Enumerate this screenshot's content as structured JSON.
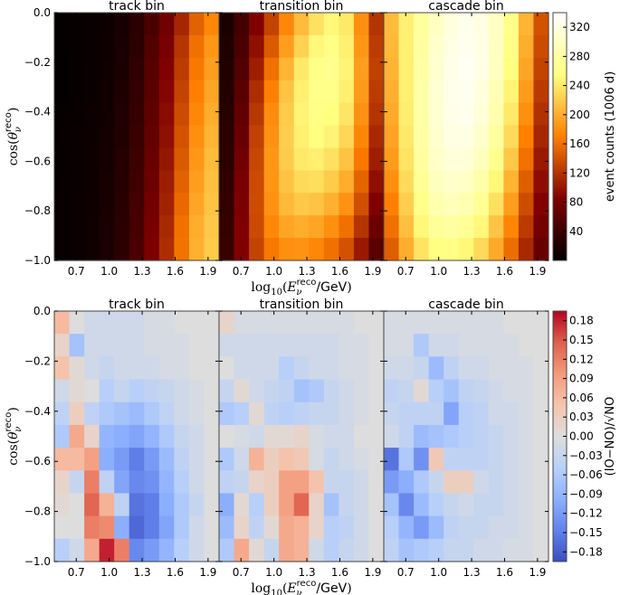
{
  "chart_data": [
    {
      "type": "heatmap",
      "title": "event counts",
      "panels": [
        {
          "title": "track bin",
          "grid": [
            [
              3,
              4,
              6,
              10,
              16,
              28,
              50,
              75,
              110,
              150,
              175
            ],
            [
              3,
              4,
              6,
              10,
              17,
              30,
              55,
              80,
              120,
              160,
              185
            ],
            [
              3,
              5,
              7,
              11,
              18,
              32,
              58,
              85,
              125,
              165,
              190
            ],
            [
              3,
              5,
              7,
              12,
              20,
              34,
              60,
              88,
              130,
              170,
              195
            ],
            [
              4,
              5,
              8,
              12,
              21,
              36,
              63,
              92,
              135,
              175,
              200
            ],
            [
              4,
              6,
              8,
              13,
              22,
              38,
              66,
              95,
              140,
              180,
              205
            ],
            [
              4,
              6,
              9,
              14,
              24,
              40,
              70,
              100,
              145,
              185,
              210
            ],
            [
              4,
              6,
              9,
              15,
              25,
              42,
              72,
              104,
              150,
              190,
              212
            ],
            [
              5,
              7,
              10,
              16,
              27,
              45,
              76,
              108,
              155,
              195,
              215
            ],
            [
              5,
              7,
              11,
              17,
              28,
              47,
              79,
              112,
              160,
              200,
              218
            ],
            [
              5,
              7,
              11,
              18,
              30,
              50,
              82,
              115,
              162,
              202,
              220
            ]
          ]
        },
        {
          "title": "transition bin",
          "grid": [
            [
              18,
              45,
              85,
              130,
              175,
              210,
              235,
              250,
              240,
              180,
              120
            ],
            [
              20,
              50,
              95,
              145,
              190,
              225,
              250,
              260,
              245,
              185,
              125
            ],
            [
              22,
              55,
              105,
              160,
              205,
              240,
              260,
              265,
              248,
              190,
              128
            ],
            [
              24,
              60,
              115,
              170,
              215,
              245,
              262,
              262,
              245,
              188,
              125
            ],
            [
              26,
              65,
              122,
              178,
              220,
              248,
              260,
              255,
              238,
              182,
              120
            ],
            [
              28,
              70,
              128,
              182,
              222,
              245,
              255,
              248,
              228,
              175,
              112
            ],
            [
              30,
              75,
              132,
              185,
              220,
              240,
              245,
              235,
              215,
              165,
              105
            ],
            [
              32,
              80,
              135,
              185,
              215,
              230,
              232,
              220,
              200,
              152,
              95
            ],
            [
              34,
              82,
              136,
              182,
              208,
              218,
              215,
              202,
              182,
              138,
              85
            ],
            [
              36,
              84,
              134,
              175,
              195,
              200,
              195,
              180,
              160,
              120,
              72
            ],
            [
              38,
              85,
              130,
              165,
              180,
              182,
              175,
              160,
              140,
              102,
              60
            ]
          ]
        },
        {
          "title": "cascade bin",
          "grid": [
            [
              210,
              245,
              275,
              300,
              318,
              328,
              320,
              300,
              262,
              205,
              140
            ],
            [
              208,
              245,
              278,
              305,
              322,
              330,
              322,
              300,
              260,
              200,
              135
            ],
            [
              205,
              245,
              280,
              308,
              325,
              332,
              322,
              298,
              255,
              195,
              130
            ],
            [
              202,
              245,
              282,
              310,
              326,
              330,
              318,
              292,
              248,
              188,
              124
            ],
            [
              198,
              243,
              282,
              310,
              325,
              328,
              314,
              285,
              240,
              180,
              118
            ],
            [
              194,
              240,
              280,
              308,
              322,
              322,
              306,
              276,
              230,
              170,
              110
            ],
            [
              188,
              236,
              276,
              303,
              315,
              314,
              296,
              264,
              218,
              160,
              102
            ],
            [
              180,
              230,
              270,
              296,
              306,
              302,
              283,
              250,
              204,
              148,
              94
            ],
            [
              170,
              222,
              262,
              286,
              294,
              288,
              268,
              234,
              190,
              136,
              86
            ],
            [
              160,
              212,
              250,
              272,
              278,
              270,
              250,
              216,
              174,
              124,
              78
            ],
            [
              148,
              200,
              236,
              256,
              260,
              250,
              230,
              198,
              158,
              112,
              70
            ]
          ]
        }
      ],
      "x_ticks": [
        "0.7",
        "1.0",
        "1.3",
        "1.6",
        "1.9"
      ],
      "y_ticks": [
        "0.0",
        "−0.2",
        "−0.4",
        "−0.6",
        "−0.8",
        "−1.0"
      ],
      "xrange": [
        0.5,
        2.0
      ],
      "yrange": [
        -1.0,
        0.0
      ],
      "colormap": "afmhot",
      "vmin": 0,
      "vmax": 340,
      "colorbar_ticks": [
        "40",
        "80",
        "120",
        "160",
        "200",
        "240",
        "280",
        "320"
      ],
      "colorbar_values": [
        40,
        80,
        120,
        160,
        200,
        240,
        280,
        320
      ],
      "colorbar_label": "event counts (1006 d)",
      "xlabel": "log10(Eνreco/GeV)",
      "xlabel_parts": {
        "fn": "log",
        "sub": "10",
        "var": "E",
        "varsub": "ν",
        "varsup": "reco",
        "unit": "/GeV"
      },
      "ylabel": "cos(θνreco)",
      "ylabel_parts": {
        "fn": "cos",
        "var": "θ",
        "varsub": "ν",
        "varsup": "reco"
      }
    },
    {
      "type": "heatmap",
      "title": "(IO−NO)/√NO",
      "panels": [
        {
          "title": "track bin",
          "grid": [
            [
              0.06,
              0.0,
              -0.02,
              -0.02,
              -0.02,
              -0.02,
              -0.01,
              -0.01,
              0.0,
              0.0,
              0.0
            ],
            [
              0.02,
              -0.07,
              -0.02,
              -0.02,
              -0.02,
              -0.02,
              -0.01,
              -0.01,
              -0.01,
              0.0,
              0.0
            ],
            [
              0.05,
              0.01,
              -0.02,
              -0.03,
              -0.02,
              -0.02,
              -0.02,
              -0.01,
              -0.01,
              0.0,
              0.0
            ],
            [
              -0.02,
              0.01,
              0.0,
              -0.05,
              -0.03,
              -0.05,
              -0.04,
              -0.03,
              -0.02,
              -0.01,
              0.0
            ],
            [
              -0.04,
              0.03,
              -0.04,
              -0.06,
              -0.07,
              -0.08,
              -0.06,
              -0.04,
              -0.02,
              -0.01,
              0.0
            ],
            [
              -0.06,
              0.08,
              0.02,
              -0.09,
              -0.1,
              -0.11,
              -0.09,
              -0.06,
              -0.03,
              -0.02,
              0.0
            ],
            [
              0.06,
              0.06,
              0.09,
              -0.1,
              -0.12,
              -0.15,
              -0.12,
              -0.08,
              -0.04,
              -0.02,
              0.0
            ],
            [
              0.02,
              -0.03,
              0.12,
              -0.04,
              -0.11,
              -0.14,
              -0.13,
              -0.09,
              -0.05,
              -0.02,
              0.0
            ],
            [
              0.01,
              0.0,
              0.14,
              0.07,
              -0.04,
              -0.16,
              -0.15,
              -0.1,
              -0.06,
              -0.03,
              0.0
            ],
            [
              0.0,
              0.0,
              0.12,
              0.11,
              -0.1,
              -0.17,
              -0.15,
              -0.11,
              -0.06,
              -0.02,
              0.0
            ],
            [
              -0.05,
              -0.02,
              0.08,
              0.18,
              0.12,
              -0.14,
              -0.12,
              -0.09,
              -0.05,
              -0.02,
              0.0
            ]
          ]
        },
        {
          "title": "transition bin",
          "grid": [
            [
              0.02,
              -0.01,
              -0.01,
              -0.01,
              -0.01,
              -0.01,
              -0.01,
              -0.01,
              -0.01,
              0.0,
              0.0
            ],
            [
              -0.02,
              -0.02,
              -0.02,
              -0.02,
              -0.02,
              -0.02,
              -0.02,
              -0.02,
              -0.01,
              -0.01,
              0.0
            ],
            [
              0.0,
              -0.02,
              -0.02,
              -0.02,
              -0.05,
              -0.03,
              -0.02,
              -0.02,
              -0.01,
              -0.01,
              0.0
            ],
            [
              -0.03,
              0.01,
              -0.02,
              -0.03,
              -0.04,
              -0.07,
              -0.06,
              -0.03,
              -0.02,
              -0.01,
              0.0
            ],
            [
              -0.06,
              -0.05,
              0.01,
              -0.04,
              -0.05,
              -0.04,
              -0.03,
              -0.03,
              -0.02,
              -0.01,
              0.0
            ],
            [
              0.0,
              -0.01,
              -0.02,
              0.01,
              0.01,
              0.02,
              -0.01,
              -0.02,
              -0.02,
              0.0,
              0.0
            ],
            [
              -0.06,
              -0.02,
              0.07,
              0.03,
              0.05,
              0.04,
              -0.01,
              -0.03,
              -0.02,
              -0.01,
              0.0
            ],
            [
              -0.04,
              -0.03,
              0.02,
              0.03,
              0.09,
              0.09,
              0.05,
              -0.03,
              -0.03,
              -0.02,
              0.0
            ],
            [
              -0.1,
              0.01,
              -0.05,
              0.03,
              0.09,
              0.14,
              0.02,
              -0.07,
              -0.03,
              -0.02,
              0.0
            ],
            [
              -0.08,
              0.02,
              -0.04,
              0.01,
              0.08,
              0.07,
              0.02,
              -0.05,
              -0.04,
              -0.02,
              0.0
            ],
            [
              -0.06,
              0.08,
              0.01,
              -0.03,
              0.08,
              0.07,
              -0.02,
              -0.05,
              -0.03,
              -0.02,
              0.0
            ]
          ]
        },
        {
          "title": "cascade bin",
          "grid": [
            [
              -0.01,
              -0.01,
              -0.01,
              -0.01,
              -0.01,
              -0.01,
              -0.01,
              -0.01,
              0.0,
              0.0,
              0.0
            ],
            [
              -0.01,
              -0.01,
              -0.06,
              -0.02,
              -0.02,
              -0.01,
              -0.01,
              -0.01,
              -0.01,
              0.0,
              0.0
            ],
            [
              -0.02,
              -0.02,
              -0.03,
              -0.08,
              -0.04,
              -0.02,
              -0.02,
              -0.01,
              -0.01,
              -0.01,
              0.0
            ],
            [
              -0.04,
              -0.03,
              0.01,
              -0.05,
              -0.07,
              -0.04,
              -0.03,
              -0.02,
              -0.01,
              -0.01,
              0.0
            ],
            [
              -0.03,
              -0.04,
              -0.04,
              -0.04,
              -0.11,
              -0.05,
              -0.04,
              -0.02,
              -0.02,
              -0.01,
              0.0
            ],
            [
              -0.02,
              -0.04,
              -0.08,
              -0.07,
              -0.06,
              -0.05,
              -0.04,
              -0.03,
              -0.02,
              -0.01,
              0.0
            ],
            [
              -0.16,
              -0.06,
              -0.13,
              0.04,
              -0.04,
              -0.04,
              -0.04,
              -0.03,
              -0.02,
              -0.01,
              0.0
            ],
            [
              -0.12,
              -0.1,
              -0.06,
              -0.03,
              0.03,
              0.03,
              -0.02,
              -0.03,
              -0.02,
              -0.01,
              0.0
            ],
            [
              -0.07,
              -0.14,
              -0.08,
              -0.05,
              -0.03,
              -0.02,
              -0.03,
              -0.03,
              -0.02,
              -0.01,
              0.0
            ],
            [
              -0.05,
              -0.09,
              -0.12,
              -0.08,
              -0.04,
              -0.03,
              -0.03,
              -0.02,
              -0.02,
              -0.01,
              0.0
            ],
            [
              -0.04,
              -0.07,
              -0.06,
              -0.05,
              -0.03,
              -0.03,
              -0.02,
              -0.02,
              -0.01,
              -0.01,
              0.0
            ]
          ]
        }
      ],
      "x_ticks": [
        "0.7",
        "1.0",
        "1.3",
        "1.6",
        "1.9"
      ],
      "y_ticks": [
        "0.0",
        "−0.2",
        "−0.4",
        "−0.6",
        "−0.8",
        "−1.0"
      ],
      "xrange": [
        0.5,
        2.0
      ],
      "yrange": [
        -1.0,
        0.0
      ],
      "colormap": "coolwarm",
      "vmin": -0.195,
      "vmax": 0.195,
      "colorbar_ticks": [
        "0.18",
        "0.15",
        "0.12",
        "0.09",
        "0.06",
        "0.03",
        "0.00",
        "−0.03",
        "−0.06",
        "−0.09",
        "−0.12",
        "−0.15",
        "−0.18"
      ],
      "colorbar_values": [
        0.18,
        0.15,
        0.12,
        0.09,
        0.06,
        0.03,
        0.0,
        -0.03,
        -0.06,
        -0.09,
        -0.12,
        -0.15,
        -0.18
      ],
      "colorbar_label": "(IO−NO)/√NO",
      "xlabel": "log10(Eνreco/GeV)",
      "xlabel_parts": {
        "fn": "log",
        "sub": "10",
        "var": "E",
        "varsub": "ν",
        "varsup": "reco",
        "unit": "/GeV"
      },
      "ylabel": "cos(θνreco)",
      "ylabel_parts": {
        "fn": "cos",
        "var": "θ",
        "varsub": "ν",
        "varsup": "reco"
      }
    }
  ]
}
